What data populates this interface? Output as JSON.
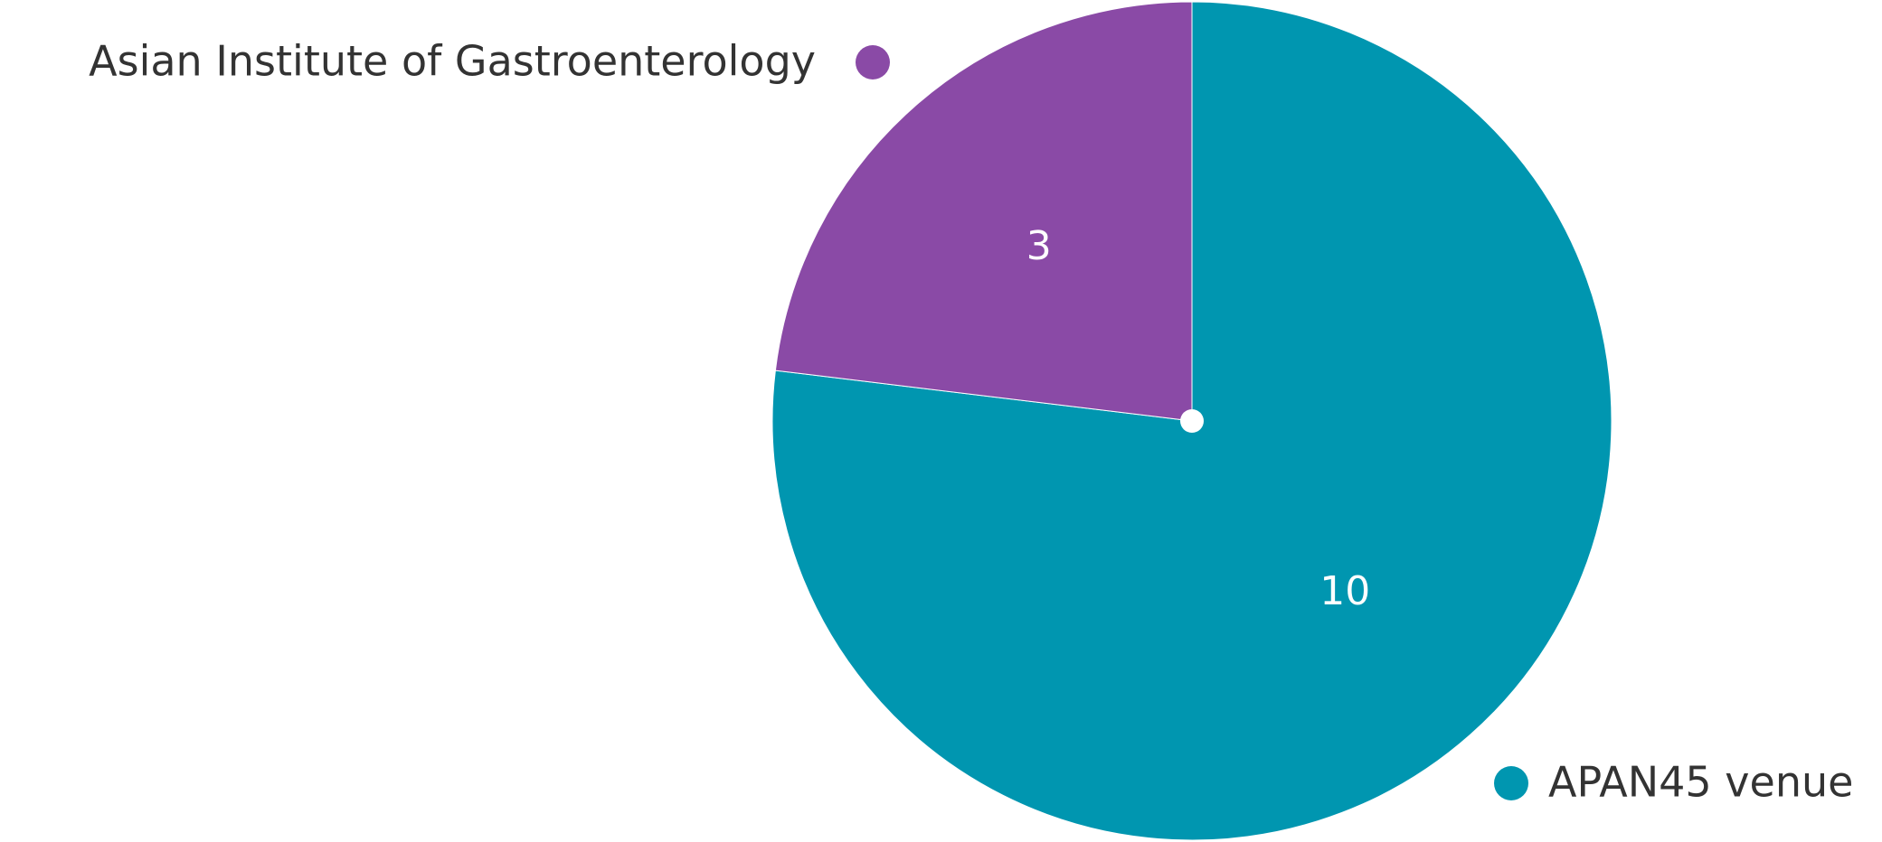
{
  "chart_data": {
    "type": "pie",
    "categories": [
      "APAN45 venue",
      "Asian Institute of Gastroenterology"
    ],
    "values": [
      10,
      3
    ],
    "colors": [
      "#0096b0",
      "#8a4aa6"
    ]
  }
}
